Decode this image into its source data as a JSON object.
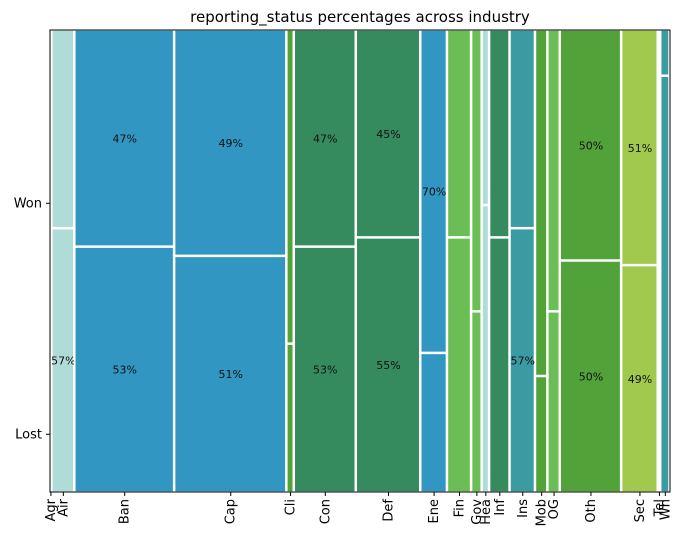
{
  "chart_data": {
    "type": "mosaic",
    "title": "reporting_status percentages across industry",
    "xlabel": "",
    "ylabel": "",
    "y_categories": [
      "Won",
      "Lost"
    ],
    "industries": [
      {
        "label": "Agr",
        "share": 0.003,
        "won": 0.5,
        "color": "#2ca02c",
        "show_pct": false
      },
      {
        "label": "Air",
        "share": 0.037,
        "won": 0.43,
        "color": "#b0dcd7",
        "show_pct": true,
        "pct_text": "57%",
        "pct_on": "lost"
      },
      {
        "label": "Ban",
        "share": 0.161,
        "won": 0.47,
        "color": "#3196c2",
        "show_pct": true
      },
      {
        "label": "Cap",
        "share": 0.181,
        "won": 0.49,
        "color": "#3196c2",
        "show_pct": true
      },
      {
        "label": "Cli",
        "share": 0.012,
        "won": 0.68,
        "color": "#52a23a",
        "show_pct": false
      },
      {
        "label": "Con",
        "share": 0.1,
        "won": 0.47,
        "color": "#358b5e",
        "show_pct": true
      },
      {
        "label": "Def",
        "share": 0.104,
        "won": 0.45,
        "color": "#358b5e",
        "show_pct": true
      },
      {
        "label": "Ene",
        "share": 0.043,
        "won": 0.7,
        "color": "#3196c2",
        "show_pct": true,
        "pct_text": "70%",
        "pct_on": "won"
      },
      {
        "label": "Fin",
        "share": 0.039,
        "won": 0.45,
        "color": "#6bbe55",
        "show_pct": false
      },
      {
        "label": "Gov",
        "share": 0.017,
        "won": 0.61,
        "color": "#6bbe55",
        "show_pct": false
      },
      {
        "label": "Hea",
        "share": 0.012,
        "won": 0.38,
        "color": "#b0dcd7",
        "show_pct": false
      },
      {
        "label": "Inf",
        "share": 0.033,
        "won": 0.45,
        "color": "#358b5e",
        "show_pct": false
      },
      {
        "label": "Ins",
        "share": 0.041,
        "won": 0.43,
        "color": "#3b9ba2",
        "show_pct": true,
        "pct_text": "57%",
        "pct_on": "lost"
      },
      {
        "label": "Mob",
        "share": 0.02,
        "won": 0.75,
        "color": "#52a23a",
        "show_pct": false
      },
      {
        "label": "OG",
        "share": 0.02,
        "won": 0.61,
        "color": "#6bbe55",
        "show_pct": false
      },
      {
        "label": "Oth",
        "share": 0.099,
        "won": 0.5,
        "color": "#52a23a",
        "show_pct": true
      },
      {
        "label": "Sec",
        "share": 0.059,
        "won": 0.51,
        "color": "#a0c94d",
        "show_pct": true
      },
      {
        "label": "Tel",
        "share": 0.004,
        "won": 0.5,
        "color": "#3196c2",
        "show_pct": false
      },
      {
        "label": "Wh",
        "share": 0.015,
        "won": 0.1,
        "color": "#3b9ba2",
        "show_pct": false
      }
    ],
    "grid": false,
    "legend": "none"
  }
}
